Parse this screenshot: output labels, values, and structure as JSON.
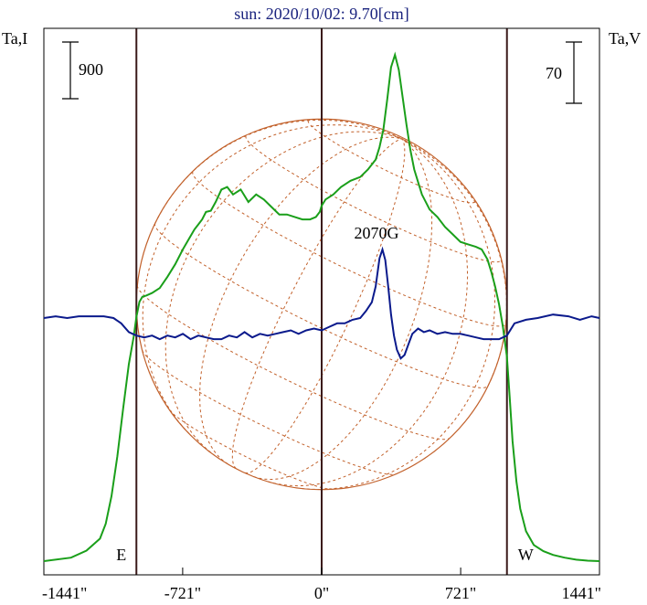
{
  "title": "sun: 2020/10/02: 9.70[cm]",
  "colors": {
    "title": "#1a237e",
    "frame": "#000000",
    "limb_lines": "#3b1a1a",
    "disk_grid": "#c2612b",
    "intensity": "#1a9f1a",
    "polarization": "#0b1a8c"
  },
  "chart_data": {
    "type": "line",
    "xlabel": "",
    "y_left_label": "Ta,I",
    "y_right_label": "Ta,V",
    "xlim": [
      -1441,
      1441
    ],
    "x_ticks": [
      {
        "value": -1441,
        "label": "-1441\""
      },
      {
        "value": -721,
        "label": "-721\""
      },
      {
        "value": 0,
        "label": "0\""
      },
      {
        "value": 721,
        "label": "721\""
      },
      {
        "value": 1441,
        "label": "1441\""
      }
    ],
    "limb_markers": [
      {
        "value": -961,
        "label": "E"
      },
      {
        "value": 0,
        "label": ""
      },
      {
        "value": 961,
        "label": "W"
      }
    ],
    "scale_bars": {
      "left": {
        "value": 900,
        "label": "900"
      },
      "right": {
        "value": 70,
        "label": "70"
      }
    },
    "annotation": {
      "text": "2070G",
      "x": 320
    },
    "disk": {
      "radius_arcsec": 961
    },
    "series": [
      {
        "key": "I",
        "x": [
          -1441,
          -1300,
          -1220,
          -1150,
          -1120,
          -1090,
          -1060,
          -1030,
          -1000,
          -975,
          -961,
          -945,
          -930,
          -910,
          -880,
          -840,
          -800,
          -760,
          -720,
          -690,
          -660,
          -640,
          -620,
          -600,
          -575,
          -550,
          -520,
          -490,
          -460,
          -420,
          -380,
          -340,
          -300,
          -260,
          -220,
          -180,
          -140,
          -100,
          -60,
          -30,
          -10,
          0,
          20,
          60,
          100,
          150,
          200,
          240,
          280,
          300,
          320,
          340,
          360,
          380,
          400,
          420,
          440,
          460,
          480,
          500,
          520,
          560,
          600,
          640,
          680,
          720,
          760,
          800,
          830,
          860,
          880,
          900,
          920,
          940,
          961,
          975,
          990,
          1010,
          1030,
          1060,
          1100,
          1150,
          1200,
          1260,
          1320,
          1380,
          1441
        ],
        "values": [
          0,
          140,
          420,
          900,
          1500,
          2600,
          4200,
          6100,
          7900,
          9000,
          9800,
          10400,
          10600,
          10650,
          10750,
          10950,
          11400,
          11900,
          12500,
          12900,
          13300,
          13500,
          13700,
          14000,
          14050,
          14400,
          14900,
          15000,
          14700,
          14900,
          14400,
          14700,
          14500,
          14200,
          13900,
          13900,
          13800,
          13700,
          13700,
          13800,
          14000,
          14250,
          14500,
          14700,
          15000,
          15250,
          15400,
          15700,
          16100,
          16600,
          17300,
          18500,
          19800,
          20300,
          19700,
          18600,
          17500,
          16500,
          15700,
          15200,
          14700,
          14100,
          13800,
          13400,
          13100,
          12800,
          12700,
          12600,
          12500,
          12100,
          11600,
          11000,
          10300,
          9400,
          8200,
          6600,
          4800,
          3200,
          2100,
          1200,
          650,
          400,
          250,
          140,
          60,
          20,
          0
        ]
      },
      {
        "key": "V",
        "x": [
          -1441,
          -1380,
          -1320,
          -1260,
          -1200,
          -1130,
          -1080,
          -1040,
          -1000,
          -961,
          -920,
          -880,
          -840,
          -800,
          -760,
          -720,
          -680,
          -640,
          -600,
          -560,
          -520,
          -480,
          -440,
          -400,
          -360,
          -320,
          -280,
          -240,
          -200,
          -160,
          -120,
          -80,
          -40,
          0,
          40,
          80,
          120,
          160,
          200,
          230,
          260,
          280,
          300,
          315,
          330,
          345,
          360,
          375,
          390,
          410,
          430,
          450,
          470,
          500,
          530,
          560,
          600,
          640,
          680,
          720,
          760,
          800,
          840,
          880,
          920,
          961,
          1000,
          1060,
          1120,
          1200,
          1280,
          1340,
          1400,
          1441
        ],
        "values": [
          0,
          1,
          0,
          1,
          1,
          1,
          0,
          -3,
          -8,
          -10,
          -11,
          -10,
          -12,
          -10,
          -11,
          -9,
          -12,
          -10,
          -11,
          -12,
          -12,
          -10,
          -11,
          -8,
          -11,
          -9,
          -10,
          -9,
          -8,
          -7,
          -9,
          -7,
          -6,
          -7,
          -5,
          -3,
          -3,
          -1,
          0,
          4,
          9,
          18,
          34,
          39,
          33,
          18,
          2,
          -10,
          -18,
          -23,
          -21,
          -15,
          -9,
          -6,
          -8,
          -7,
          -9,
          -8,
          -9,
          -9,
          -10,
          -11,
          -12,
          -12,
          -12,
          -10,
          -3,
          -1,
          0,
          2,
          1,
          -1,
          1,
          0
        ]
      }
    ]
  }
}
